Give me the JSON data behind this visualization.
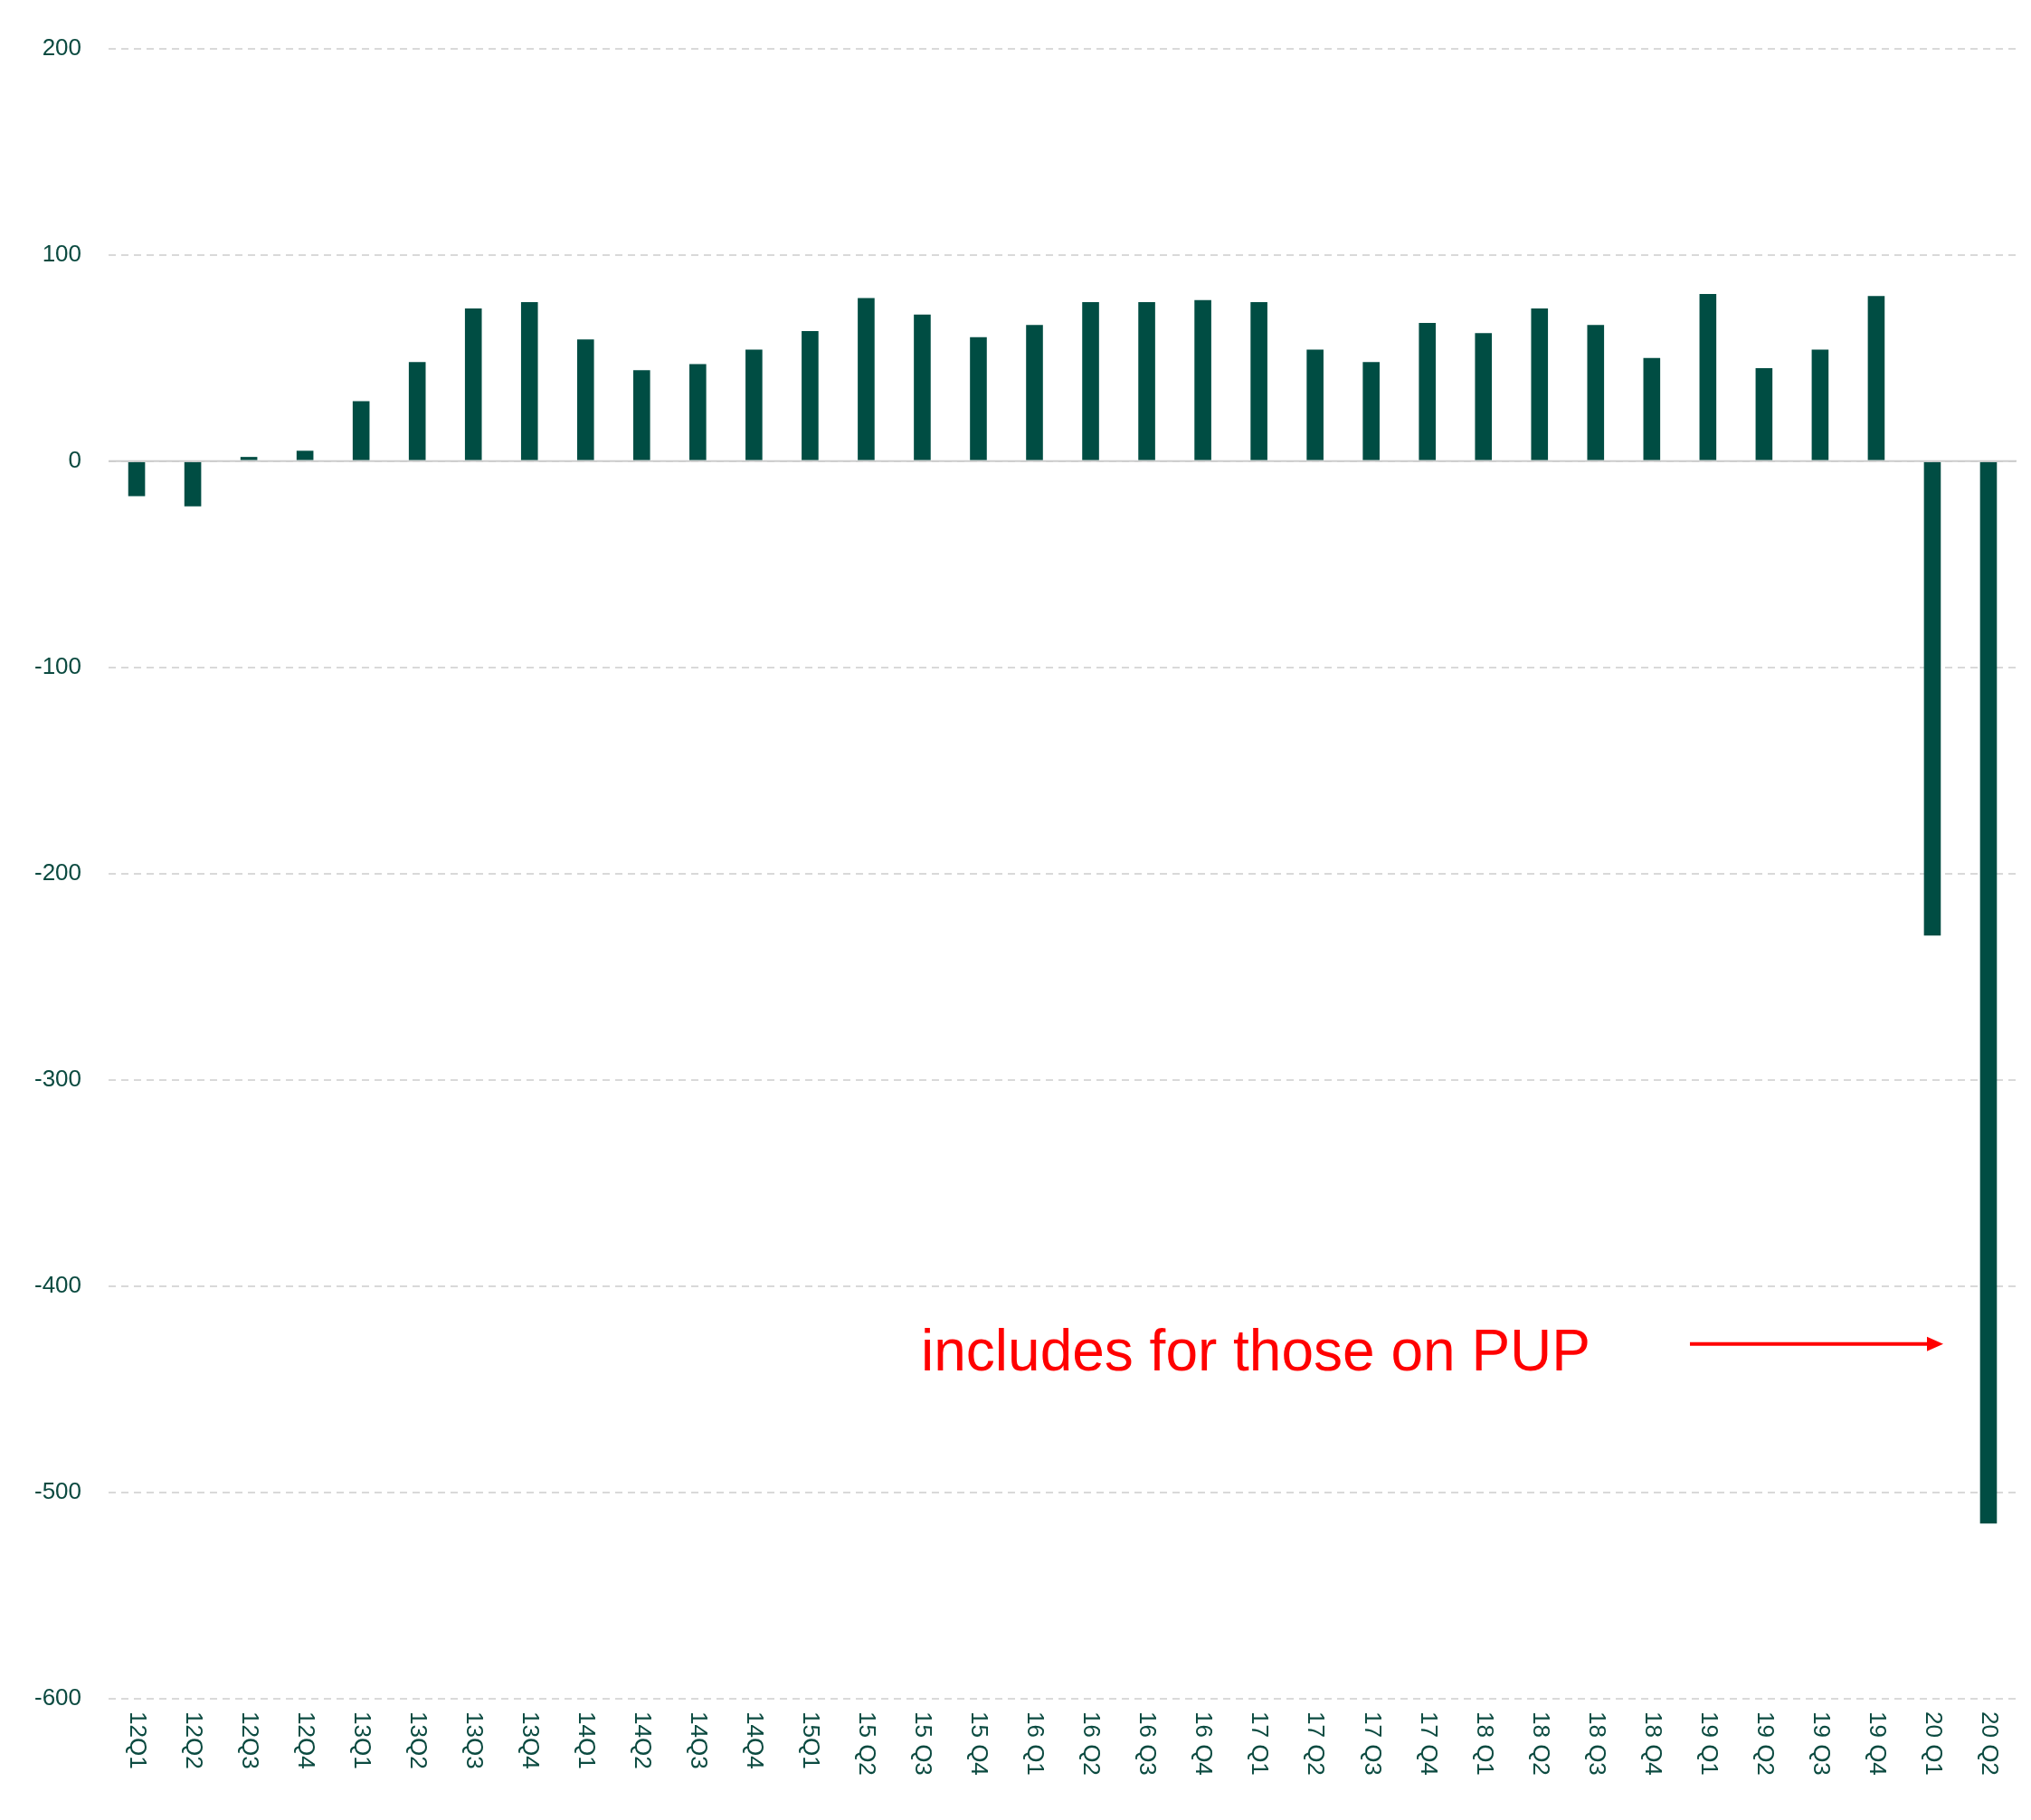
{
  "chart_data": {
    "type": "bar",
    "categories": [
      "12Q1",
      "12Q2",
      "12Q3",
      "12Q4",
      "13Q1",
      "13Q2",
      "13Q3",
      "13Q4",
      "14Q1",
      "14Q2",
      "14Q3",
      "14Q4",
      "15Q1",
      "15 Q2",
      "15 Q3",
      "15 Q4",
      "16 Q1",
      "16 Q2",
      "16 Q3",
      "16 Q4",
      "17 Q1",
      "17 Q2",
      "17 Q3",
      "17 Q4",
      "18 Q1",
      "18 Q2",
      "18 Q3",
      "18 Q4",
      "19 Q1",
      "19 Q2",
      "19 Q3",
      "19 Q4",
      "20 Q1",
      "20 Q2"
    ],
    "values": [
      -17,
      -22,
      2,
      5,
      29,
      48,
      74,
      77,
      59,
      44,
      47,
      54,
      63,
      79,
      71,
      60,
      66,
      77,
      77,
      78,
      77,
      54,
      48,
      67,
      62,
      74,
      66,
      50,
      81,
      45,
      54,
      80,
      -230,
      -515
    ],
    "color": "#004d43",
    "ylim": [
      -600,
      200
    ],
    "yticks": [
      -600,
      -500,
      -400,
      -300,
      -200,
      -100,
      0,
      100,
      200
    ],
    "grid": "y",
    "annotations": [
      "includes for those on PUP"
    ]
  }
}
